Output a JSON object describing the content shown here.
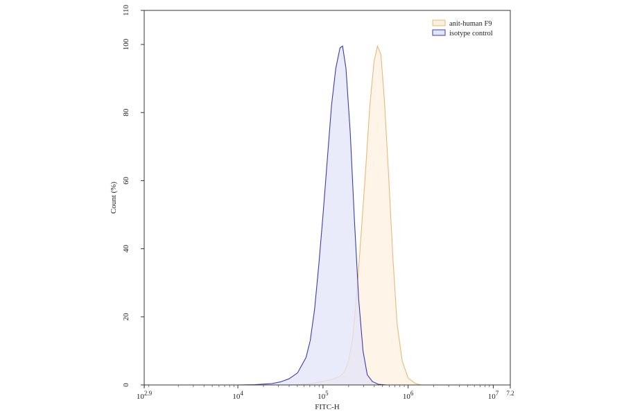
{
  "chart_data": {
    "type": "area",
    "xlabel": "FITC-H",
    "ylabel": "Count  (%)",
    "x_scale": "log10",
    "xlim_log10": [
      2.9,
      7.2
    ],
    "ylim": [
      0,
      110
    ],
    "x_ticks": [
      {
        "log10": 2.9,
        "base": "10",
        "exp": "2.9"
      },
      {
        "log10": 4,
        "base": "10",
        "exp": "4"
      },
      {
        "log10": 5,
        "base": "10",
        "exp": "5"
      },
      {
        "log10": 6,
        "base": "10",
        "exp": "6"
      },
      {
        "log10": 7,
        "base": "10",
        "exp": "7"
      },
      {
        "log10": 7.2,
        "base": "",
        "exp": "7.2"
      }
    ],
    "y_ticks": [
      0,
      20,
      40,
      60,
      80,
      100,
      110
    ],
    "legend_position": "top-right",
    "series": [
      {
        "name": "anit-human F9",
        "stroke": "#e9b877",
        "fill": "#fdf0e0",
        "points_log10_x": [
          [
            2.9,
            0
          ],
          [
            4.6,
            0
          ],
          [
            4.8,
            0.2
          ],
          [
            4.9,
            0.6
          ],
          [
            5.0,
            1.0
          ],
          [
            5.1,
            1.6
          ],
          [
            5.15,
            2.0
          ],
          [
            5.2,
            2.5
          ],
          [
            5.25,
            3.8
          ],
          [
            5.3,
            7.0
          ],
          [
            5.35,
            14
          ],
          [
            5.4,
            28
          ],
          [
            5.45,
            45
          ],
          [
            5.5,
            63
          ],
          [
            5.55,
            82
          ],
          [
            5.6,
            95
          ],
          [
            5.64,
            99.5
          ],
          [
            5.68,
            97
          ],
          [
            5.72,
            84
          ],
          [
            5.77,
            62
          ],
          [
            5.82,
            38
          ],
          [
            5.87,
            18
          ],
          [
            5.93,
            7
          ],
          [
            6.0,
            2
          ],
          [
            6.08,
            0.5
          ],
          [
            6.15,
            0
          ],
          [
            7.2,
            0
          ]
        ]
      },
      {
        "name": "isotype control",
        "stroke": "#3b3bab",
        "fill": "#e3e4f8",
        "points_log10_x": [
          [
            2.9,
            0
          ],
          [
            4.0,
            0
          ],
          [
            4.2,
            0.1
          ],
          [
            4.4,
            0.4
          ],
          [
            4.5,
            0.9
          ],
          [
            4.6,
            1.8
          ],
          [
            4.7,
            3.5
          ],
          [
            4.8,
            8
          ],
          [
            4.85,
            13
          ],
          [
            4.9,
            22
          ],
          [
            4.95,
            35
          ],
          [
            5.0,
            50
          ],
          [
            5.05,
            66
          ],
          [
            5.1,
            82
          ],
          [
            5.15,
            93
          ],
          [
            5.2,
            99
          ],
          [
            5.23,
            99.5
          ],
          [
            5.27,
            93
          ],
          [
            5.32,
            74
          ],
          [
            5.37,
            48
          ],
          [
            5.42,
            25
          ],
          [
            5.47,
            10
          ],
          [
            5.52,
            3
          ],
          [
            5.58,
            1
          ],
          [
            5.65,
            0.2
          ],
          [
            5.75,
            0
          ],
          [
            7.2,
            0
          ]
        ]
      }
    ]
  }
}
